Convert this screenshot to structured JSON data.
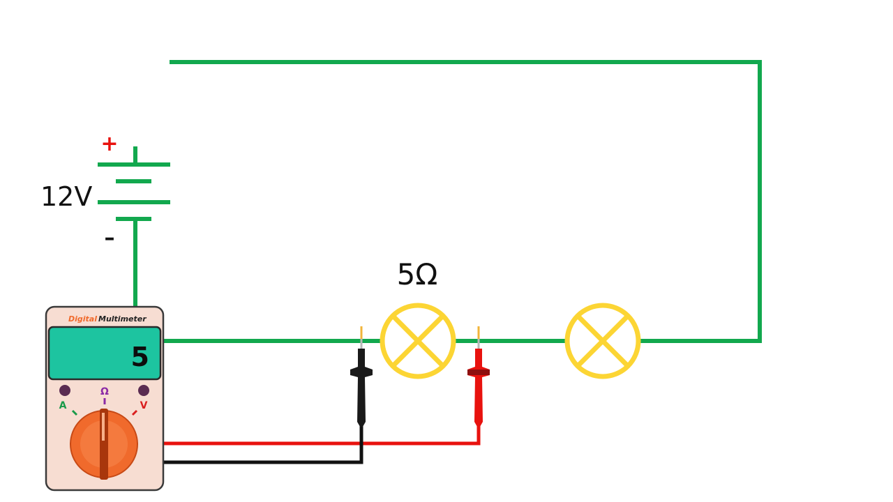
{
  "battery": {
    "voltage_label": "12V",
    "plus_sign": "+",
    "minus_sign": "–"
  },
  "lamp": {
    "resistance_label": "5Ω"
  },
  "multimeter": {
    "brand_word1": "Digital",
    "brand_word2": "Multimeter",
    "reading": "5",
    "dial_labels": {
      "ammeter": "A",
      "ohmmeter": "Ω",
      "voltmeter": "V"
    }
  },
  "colors": {
    "wire": "#12a84e",
    "lamp": "#fcd534",
    "lead_positive": "#e8120e",
    "lead_negative": "#111111",
    "meter_body": "#f7ddd2",
    "meter_screen": "#1dc4a0",
    "dial": "#f06a2c",
    "label_ammeter": "#1a9a4a",
    "label_ohmmeter": "#8b2aa6",
    "label_voltmeter": "#d91e1e",
    "brand_word1": "#f06a2c",
    "brand_word2": "#222222"
  },
  "icons": [
    "battery-icon",
    "lamp-icon",
    "multimeter-icon",
    "probe-icon",
    "selector-dial-icon"
  ]
}
